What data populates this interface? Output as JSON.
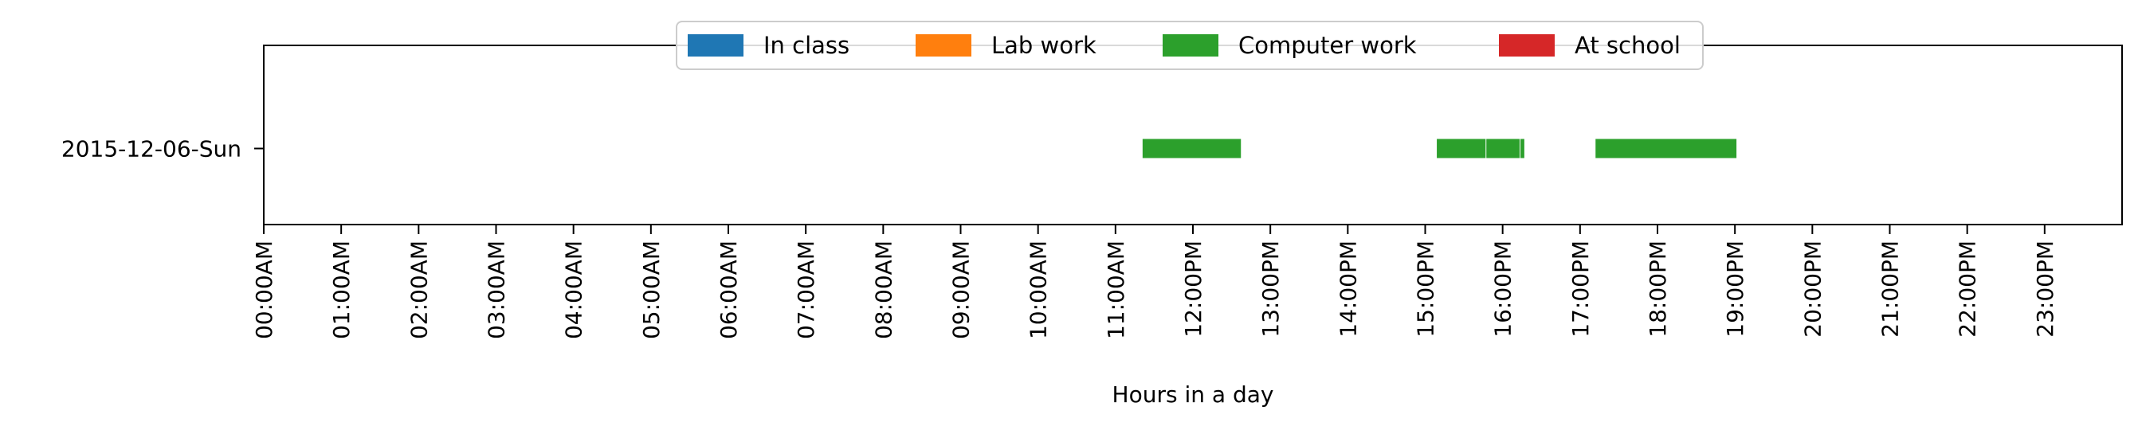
{
  "chart_data": {
    "type": "timeline",
    "xlabel": "Hours in a day",
    "xlim": [
      0,
      24
    ],
    "x_ticks": [
      "00:00AM",
      "01:00AM",
      "02:00AM",
      "03:00AM",
      "04:00AM",
      "05:00AM",
      "06:00AM",
      "07:00AM",
      "08:00AM",
      "09:00AM",
      "10:00AM",
      "11:00AM",
      "12:00PM",
      "13:00PM",
      "14:00PM",
      "15:00PM",
      "16:00PM",
      "17:00PM",
      "18:00PM",
      "19:00PM",
      "20:00PM",
      "21:00PM",
      "22:00PM",
      "23:00PM"
    ],
    "categories": [
      "2015-12-06-Sun"
    ],
    "grid": false,
    "legend_position": "top-center",
    "series": [
      {
        "name": "In class",
        "color": "#1f77b4",
        "intervals": []
      },
      {
        "name": "Lab work",
        "color": "#ff7f0e",
        "intervals": []
      },
      {
        "name": "Computer work",
        "color": "#2ca02c",
        "intervals": [
          {
            "day": "2015-12-06-Sun",
            "start": 11.35,
            "end": 12.62
          },
          {
            "day": "2015-12-06-Sun",
            "start": 15.15,
            "end": 15.78
          },
          {
            "day": "2015-12-06-Sun",
            "start": 15.79,
            "end": 16.22
          },
          {
            "day": "2015-12-06-Sun",
            "start": 16.23,
            "end": 16.28
          },
          {
            "day": "2015-12-06-Sun",
            "start": 17.2,
            "end": 19.02
          }
        ]
      },
      {
        "name": "At school",
        "color": "#d62728",
        "intervals": []
      }
    ]
  }
}
